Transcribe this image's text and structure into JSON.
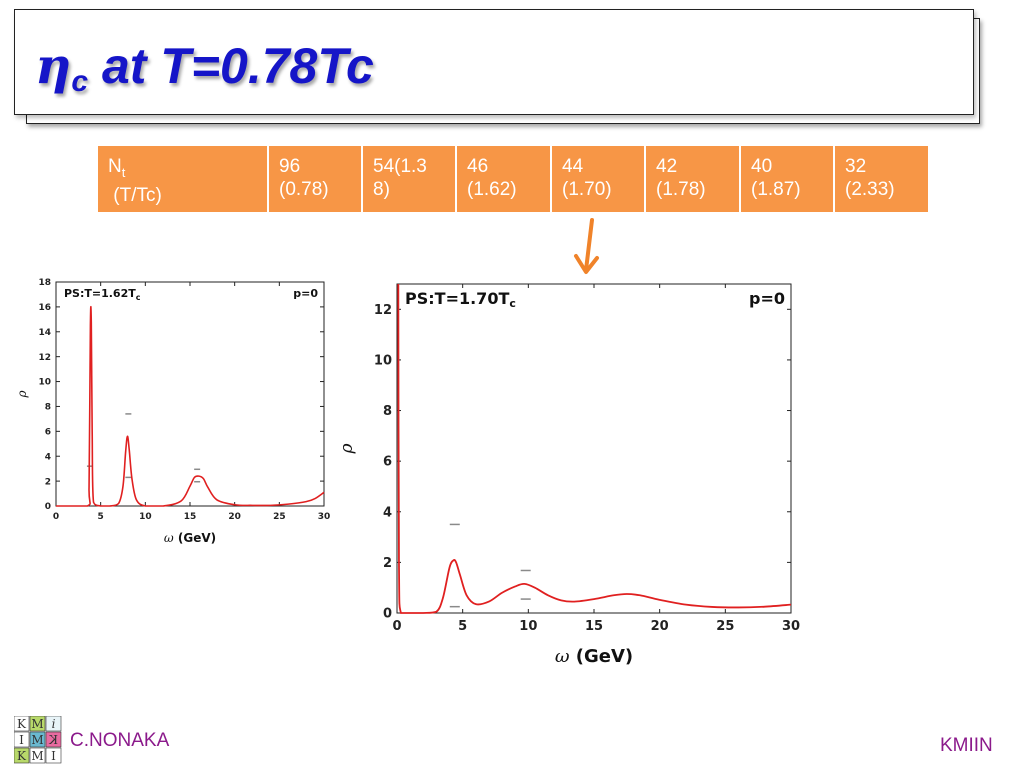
{
  "slide": {
    "title_symbol": "η",
    "title_subscript": "c",
    "title_rest": " at T=0.78Tc",
    "author": "C.NONAKA",
    "footer_right": "KMIIN"
  },
  "table": {
    "header_cell": {
      "label": "N",
      "sub": "t",
      "line2": " (T/Tc)"
    },
    "cells": [
      {
        "line1": "96",
        "line2": "(0.78)"
      },
      {
        "line1": "54(1.3",
        "line2": "8)"
      },
      {
        "line1": "46",
        "line2": "(1.62)"
      },
      {
        "line1": "44",
        "line2": "(1.70)"
      },
      {
        "line1": "42",
        "line2": "(1.78)"
      },
      {
        "line1": "40",
        "line2": "(1.87)"
      },
      {
        "line1": "32",
        "line2": "(2.33)"
      }
    ]
  },
  "logo": {
    "letters": [
      "K",
      "M",
      "i",
      "I",
      "M",
      "K",
      "K",
      "M",
      "I"
    ]
  },
  "colors": {
    "accent_title": "#1515c8",
    "table_fill": "#f79646",
    "arrow": "#f0832a",
    "curve": "#e02020",
    "footer": "#8b1a8b"
  },
  "chart_data": [
    {
      "type": "line",
      "label_main": "PS:T=1.62T",
      "label_sub": "c",
      "label_right": "p=0",
      "xlabel_symbol": "ω",
      "xlabel_text": " (GeV)",
      "ylabel": "ρ",
      "xlim": [
        0,
        30
      ],
      "ylim": [
        0,
        18
      ],
      "xticks": [
        0,
        5,
        10,
        15,
        20,
        25,
        30
      ],
      "yticks": [
        0,
        2,
        4,
        6,
        8,
        10,
        12,
        14,
        16,
        18
      ],
      "series": [
        {
          "x": [
            0,
            3.5,
            3.7,
            3.85,
            3.95,
            4.05,
            4.2,
            5,
            6,
            7,
            7.5,
            7.8,
            8.0,
            8.2,
            8.5,
            9,
            10,
            12,
            14,
            15,
            15.5,
            16,
            16.5,
            17,
            18,
            20,
            22,
            24,
            26,
            28,
            29,
            30
          ],
          "y": [
            0,
            0,
            1.5,
            14.5,
            14.8,
            6,
            0.3,
            0,
            0,
            0.2,
            1.6,
            4.4,
            5.6,
            4.5,
            2.2,
            0.5,
            0,
            0,
            0.4,
            1.6,
            2.3,
            2.4,
            2.2,
            1.5,
            0.5,
            0.1,
            0.05,
            0.05,
            0.15,
            0.35,
            0.6,
            1.1
          ]
        }
      ],
      "error_bars": [
        {
          "x": 8.1,
          "y": [
            7.4,
            2.3
          ]
        },
        {
          "x": 15.8,
          "y": [
            2.95,
            1.95
          ]
        },
        {
          "x": 3.8,
          "y": [
            3.2
          ]
        }
      ]
    },
    {
      "type": "line",
      "label_main": "PS:T=1.70T",
      "label_sub": "c",
      "label_right": "p=0",
      "xlabel_symbol": "ω",
      "xlabel_text": " (GeV)",
      "ylabel": "ρ",
      "xlim": [
        0,
        30
      ],
      "ylim": [
        0,
        13
      ],
      "xticks": [
        0,
        5,
        10,
        15,
        20,
        25,
        30
      ],
      "yticks": [
        0,
        2,
        4,
        6,
        8,
        10,
        12
      ],
      "series": [
        {
          "x": [
            0.1,
            0.15,
            0.3,
            1,
            2,
            3,
            3.5,
            4.0,
            4.3,
            4.5,
            4.8,
            5.3,
            6,
            7,
            8,
            9,
            9.7,
            10.5,
            11.5,
            12.5,
            13.5,
            15,
            16.5,
            17.5,
            18.5,
            20,
            22,
            24,
            26,
            28,
            30
          ],
          "y": [
            13,
            2,
            0,
            0,
            0,
            0.05,
            0.6,
            1.8,
            2.08,
            2.0,
            1.5,
            0.7,
            0.35,
            0.45,
            0.8,
            1.05,
            1.15,
            1.0,
            0.7,
            0.5,
            0.45,
            0.55,
            0.7,
            0.75,
            0.7,
            0.52,
            0.33,
            0.24,
            0.22,
            0.25,
            0.33
          ]
        }
      ],
      "error_bars": [
        {
          "x": 4.4,
          "y": [
            3.5,
            0.25
          ]
        },
        {
          "x": 9.8,
          "y": [
            1.68,
            0.55
          ]
        }
      ]
    }
  ]
}
